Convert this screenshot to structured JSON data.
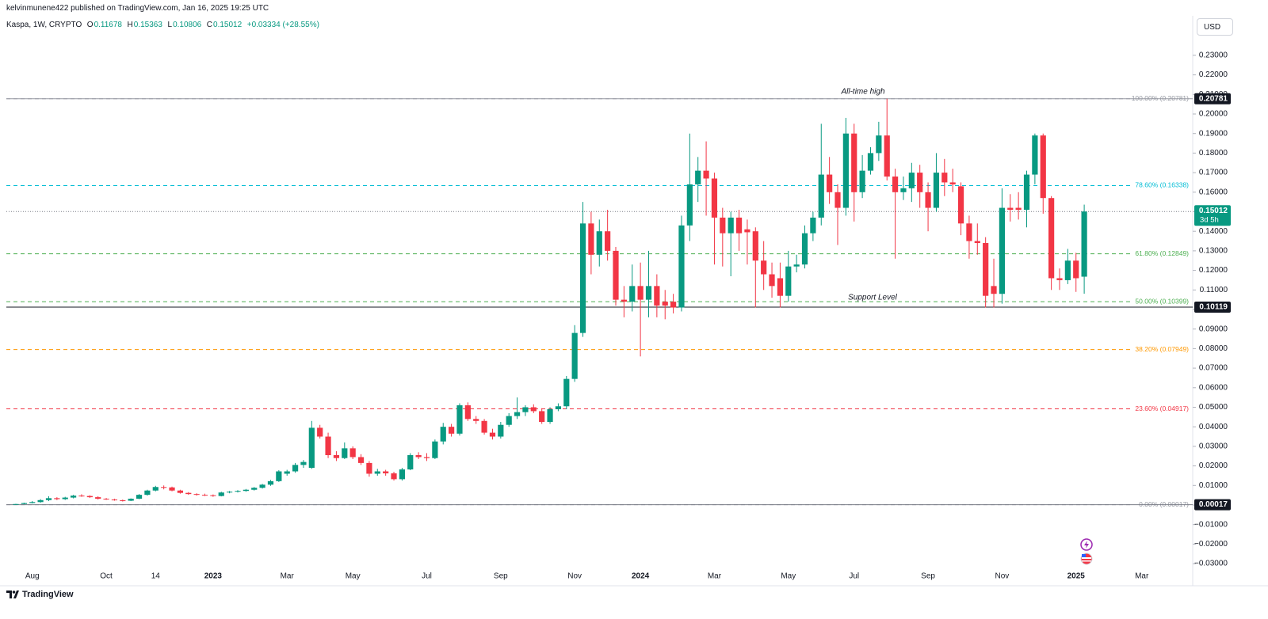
{
  "header": {
    "publisher": "kelvinmunene422 published on TradingView.com, Jan 16, 2025 19:25 UTC",
    "symbol": "Kaspa, 1W, CRYPTO",
    "ohlc_labels": [
      "O",
      "H",
      "L",
      "C"
    ],
    "change": "+0.03334 (+28.55%)"
  },
  "currency": "USD",
  "brand": "TradingView",
  "annotations": [
    "All-time high",
    "Support Level"
  ],
  "chart_data": {
    "type": "candlestick",
    "up_color": "#089981",
    "down_color": "#f23645",
    "categories": [
      null,
      null,
      "Aug",
      null,
      null,
      null,
      null,
      null,
      null,
      null,
      null,
      "Oct",
      null,
      null,
      null,
      null,
      null,
      "14",
      null,
      null,
      null,
      null,
      null,
      null,
      "2023",
      null,
      null,
      null,
      null,
      null,
      null,
      null,
      null,
      "Mar",
      null,
      null,
      null,
      null,
      null,
      null,
      null,
      "May",
      null,
      null,
      null,
      null,
      null,
      null,
      null,
      null,
      "Jul",
      null,
      null,
      null,
      null,
      null,
      null,
      null,
      null,
      "Sep",
      null,
      null,
      null,
      null,
      null,
      null,
      null,
      null,
      "Nov",
      null,
      null,
      null,
      null,
      null,
      null,
      null,
      "2024",
      null,
      null,
      null,
      null,
      null,
      null,
      null,
      null,
      "Mar",
      null,
      null,
      null,
      null,
      null,
      null,
      null,
      null,
      "May",
      null,
      null,
      null,
      null,
      null,
      null,
      null,
      "Jul",
      null,
      null,
      null,
      null,
      null,
      null,
      null,
      null,
      "Sep",
      null,
      null,
      null,
      null,
      null,
      null,
      null,
      null,
      "Nov",
      null,
      null,
      null,
      null,
      null,
      null,
      null,
      null,
      "2025",
      null,
      null,
      null,
      null,
      null,
      null,
      null,
      "Mar",
      null,
      null,
      null,
      null,
      null
    ],
    "open": [
      0.0002,
      0.0005,
      0.001,
      0.0015,
      0.0025,
      0.0035,
      0.003,
      0.0038,
      0.0048,
      0.0046,
      0.004,
      0.0032,
      0.0028,
      0.0024,
      0.0022,
      0.0032,
      0.0052,
      0.0074,
      0.0092,
      0.009,
      0.0074,
      0.0062,
      0.0056,
      0.0052,
      0.005,
      0.0046,
      0.0064,
      0.0068,
      0.0072,
      0.0078,
      0.0088,
      0.0104,
      0.0122,
      0.016,
      0.0172,
      0.0205,
      0.019,
      0.0395,
      0.035,
      0.0255,
      0.024,
      0.029,
      0.0245,
      0.0215,
      0.016,
      0.0172,
      0.0162,
      0.0132,
      0.0182,
      0.0255,
      0.0245,
      0.024,
      0.0325,
      0.04,
      0.0365,
      0.051,
      0.044,
      0.043,
      0.037,
      0.035,
      0.041,
      0.0455,
      0.0475,
      0.05,
      0.048,
      0.0425,
      0.049,
      0.0505,
      0.0645,
      0.088,
      0.144,
      0.128,
      0.14,
      0.13,
      0.105,
      0.104,
      0.112,
      0.105,
      0.112,
      0.104,
      0.104,
      0.101,
      0.143,
      0.164,
      0.171,
      0.167,
      0.147,
      0.139,
      0.147,
      0.141,
      0.14,
      0.125,
      0.118,
      0.116,
      0.107,
      0.122,
      0.123,
      0.139,
      0.147,
      0.169,
      0.16,
      0.152,
      0.19,
      0.16,
      0.171,
      0.18,
      0.189,
      0.168,
      0.16,
      0.162,
      0.17,
      0.16,
      0.152,
      0.17,
      0.165,
      0.163,
      0.144,
      0.135,
      0.134,
      0.112,
      0.108,
      0.152,
      0.152,
      0.151,
      0.169,
      0.189,
      0.157,
      0.116,
      0.115,
      0.125,
      0.11678,
      null,
      null,
      null,
      null,
      null,
      null,
      null,
      null,
      null,
      null,
      null,
      null
    ],
    "high": [
      0.0006,
      0.0012,
      0.002,
      0.003,
      0.0045,
      0.004,
      0.0042,
      0.0052,
      0.0055,
      0.005,
      0.0045,
      0.0036,
      0.0032,
      0.0028,
      0.0034,
      0.0056,
      0.0078,
      0.0098,
      0.01,
      0.0094,
      0.0078,
      0.0066,
      0.006,
      0.0058,
      0.0054,
      0.0068,
      0.0072,
      0.0076,
      0.0082,
      0.0092,
      0.0108,
      0.0128,
      0.0178,
      0.018,
      0.0215,
      0.023,
      0.043,
      0.041,
      0.037,
      0.0275,
      0.032,
      0.03,
      0.026,
      0.0225,
      0.0185,
      0.018,
      0.017,
      0.019,
      0.0265,
      0.027,
      0.0265,
      0.0335,
      0.042,
      0.0415,
      0.052,
      0.0525,
      0.0455,
      0.044,
      0.039,
      0.0425,
      0.047,
      0.055,
      0.051,
      0.0515,
      0.0495,
      0.05,
      0.052,
      0.066,
      0.092,
      0.155,
      0.15,
      0.146,
      0.151,
      0.132,
      0.112,
      0.123,
      0.124,
      0.13,
      0.118,
      0.11,
      0.108,
      0.148,
      0.19,
      0.178,
      0.186,
      0.17,
      0.152,
      0.15,
      0.151,
      0.146,
      0.142,
      0.135,
      0.124,
      0.124,
      0.13,
      0.128,
      0.143,
      0.15,
      0.195,
      0.178,
      0.164,
      0.198,
      0.195,
      0.179,
      0.183,
      0.196,
      0.20781,
      0.172,
      0.168,
      0.175,
      0.174,
      0.165,
      0.18,
      0.177,
      0.172,
      0.165,
      0.148,
      0.144,
      0.137,
      0.126,
      0.162,
      0.159,
      0.16,
      0.171,
      0.19,
      0.19,
      0.158,
      0.121,
      0.131,
      0.129,
      0.15363,
      null,
      null,
      null,
      null,
      null,
      null,
      null,
      null,
      null,
      null,
      null,
      null
    ],
    "low": [
      0.0001,
      0.0004,
      0.0008,
      0.0012,
      0.002,
      0.0025,
      0.0026,
      0.0034,
      0.0042,
      0.0036,
      0.0028,
      0.0026,
      0.0022,
      0.0018,
      0.002,
      0.003,
      0.0048,
      0.007,
      0.008,
      0.007,
      0.0058,
      0.0052,
      0.0048,
      0.0046,
      0.0042,
      0.0044,
      0.006,
      0.0064,
      0.0068,
      0.0074,
      0.0084,
      0.0098,
      0.0118,
      0.015,
      0.0165,
      0.019,
      0.0185,
      0.034,
      0.024,
      0.0225,
      0.0235,
      0.0235,
      0.0205,
      0.0145,
      0.015,
      0.015,
      0.0125,
      0.0125,
      0.0178,
      0.0235,
      0.0225,
      0.0235,
      0.031,
      0.035,
      0.0355,
      0.043,
      0.0415,
      0.036,
      0.0335,
      0.034,
      0.04,
      0.044,
      0.0455,
      0.047,
      0.0415,
      0.0415,
      0.048,
      0.049,
      0.063,
      0.086,
      0.118,
      0.122,
      0.125,
      0.102,
      0.096,
      0.099,
      0.076,
      0.096,
      0.096,
      0.095,
      0.098,
      0.099,
      0.135,
      0.155,
      0.148,
      0.123,
      0.122,
      0.117,
      0.13,
      0.123,
      0.101,
      0.11,
      0.106,
      0.101,
      0.104,
      0.119,
      0.121,
      0.135,
      0.143,
      0.154,
      0.133,
      0.148,
      0.145,
      0.157,
      0.169,
      0.176,
      0.166,
      0.126,
      0.156,
      0.155,
      0.152,
      0.14,
      0.15,
      0.158,
      0.16,
      0.138,
      0.126,
      0.128,
      0.101,
      0.101,
      0.103,
      0.145,
      0.146,
      0.142,
      0.164,
      0.149,
      0.11,
      0.11,
      0.113,
      0.109,
      0.10806,
      null,
      null,
      null,
      null,
      null,
      null,
      null,
      null,
      null,
      null,
      null,
      null
    ],
    "close": [
      0.0005,
      0.001,
      0.0015,
      0.0025,
      0.0035,
      0.003,
      0.0038,
      0.0048,
      0.0046,
      0.004,
      0.0032,
      0.0028,
      0.0024,
      0.0022,
      0.0032,
      0.0052,
      0.0074,
      0.0092,
      0.009,
      0.0074,
      0.0062,
      0.0056,
      0.0052,
      0.005,
      0.0046,
      0.0064,
      0.0068,
      0.0072,
      0.0078,
      0.0088,
      0.0104,
      0.0122,
      0.0172,
      0.0172,
      0.0205,
      0.022,
      0.0395,
      0.035,
      0.0255,
      0.024,
      0.029,
      0.0245,
      0.0215,
      0.016,
      0.0172,
      0.0162,
      0.0132,
      0.0182,
      0.0255,
      0.0245,
      0.024,
      0.0325,
      0.04,
      0.0365,
      0.051,
      0.044,
      0.043,
      0.037,
      0.035,
      0.041,
      0.0455,
      0.0475,
      0.05,
      0.048,
      0.0425,
      0.049,
      0.0505,
      0.0645,
      0.088,
      0.144,
      0.128,
      0.14,
      0.13,
      0.105,
      0.104,
      0.112,
      0.105,
      0.112,
      0.102,
      0.102,
      0.101,
      0.143,
      0.164,
      0.171,
      0.167,
      0.147,
      0.139,
      0.147,
      0.139,
      0.1395,
      0.125,
      0.118,
      0.112,
      0.107,
      0.122,
      0.123,
      0.139,
      0.147,
      0.169,
      0.16,
      0.152,
      0.19,
      0.16,
      0.171,
      0.18,
      0.189,
      0.168,
      0.16,
      0.162,
      0.17,
      0.16,
      0.152,
      0.17,
      0.165,
      0.164,
      0.144,
      0.135,
      0.134,
      0.107,
      0.108,
      0.152,
      0.151,
      0.151,
      0.169,
      0.189,
      0.157,
      0.116,
      0.115,
      0.125,
      0.116,
      0.15012,
      null,
      null,
      null,
      null,
      null,
      null,
      null,
      null,
      null,
      null,
      null,
      null
    ],
    "countdown": "3d 5h",
    "ylim": [
      -0.0413,
      0.2502
    ],
    "yticks": [
      {
        "value": -0.03,
        "label": "−0.03000"
      },
      {
        "value": -0.02,
        "label": "−0.02000"
      },
      {
        "value": -0.01,
        "label": "−0.01000"
      },
      {
        "value": 0,
        "label": "0.00000"
      },
      {
        "value": 0.01,
        "label": "0.01000"
      },
      {
        "value": 0.02,
        "label": "0.02000"
      },
      {
        "value": 0.03,
        "label": "0.03000"
      },
      {
        "value": 0.04,
        "label": "0.04000"
      },
      {
        "value": 0.05,
        "label": "0.05000"
      },
      {
        "value": 0.06,
        "label": "0.06000"
      },
      {
        "value": 0.07,
        "label": "0.07000"
      },
      {
        "value": 0.08,
        "label": "0.08000"
      },
      {
        "value": 0.09,
        "label": "0.09000"
      },
      {
        "value": 0.1,
        "label": "0.10000"
      },
      {
        "value": 0.11,
        "label": "0.11000"
      },
      {
        "value": 0.12,
        "label": "0.12000"
      },
      {
        "value": 0.13,
        "label": "0.13000"
      },
      {
        "value": 0.14,
        "label": "0.14000"
      },
      {
        "value": 0.15,
        "label": "0.15000"
      },
      {
        "value": 0.16,
        "label": "0.16000"
      },
      {
        "value": 0.17,
        "label": "0.17000"
      },
      {
        "value": 0.18,
        "label": "0.18000"
      },
      {
        "value": 0.19,
        "label": "0.19000"
      },
      {
        "value": 0.2,
        "label": "0.20000"
      },
      {
        "value": 0.21,
        "label": "0.21000"
      },
      {
        "value": 0.22,
        "label": "0.22000"
      },
      {
        "value": 0.23,
        "label": "0.23000"
      }
    ],
    "grid": false,
    "fib_levels": [
      {
        "value": 0.20781,
        "label": "100.00% (0.20781)",
        "color": "#9598a1"
      },
      {
        "value": 0.16338,
        "label": "78.60% (0.16338)",
        "color": "#00bcd4"
      },
      {
        "value": 0.12849,
        "label": "61.80% (0.12849)",
        "color": "#4caf50"
      },
      {
        "value": 0.10399,
        "label": "50.00% (0.10399)",
        "color": "#4caf50"
      },
      {
        "value": 0.07949,
        "label": "38.20% (0.07949)",
        "color": "#ff9800"
      },
      {
        "value": 0.04917,
        "label": "23.60% (0.04917)",
        "color": "#f23645"
      },
      {
        "value": 0.00017,
        "label": "0.00% (0.00017)",
        "color": "#9598a1"
      }
    ],
    "price_lines": [
      {
        "value": 0.20781,
        "color": "#9598a1"
      },
      {
        "value": 0.10119,
        "color": "#131722"
      },
      {
        "value": 0.00017,
        "color": "#787b86"
      }
    ]
  }
}
